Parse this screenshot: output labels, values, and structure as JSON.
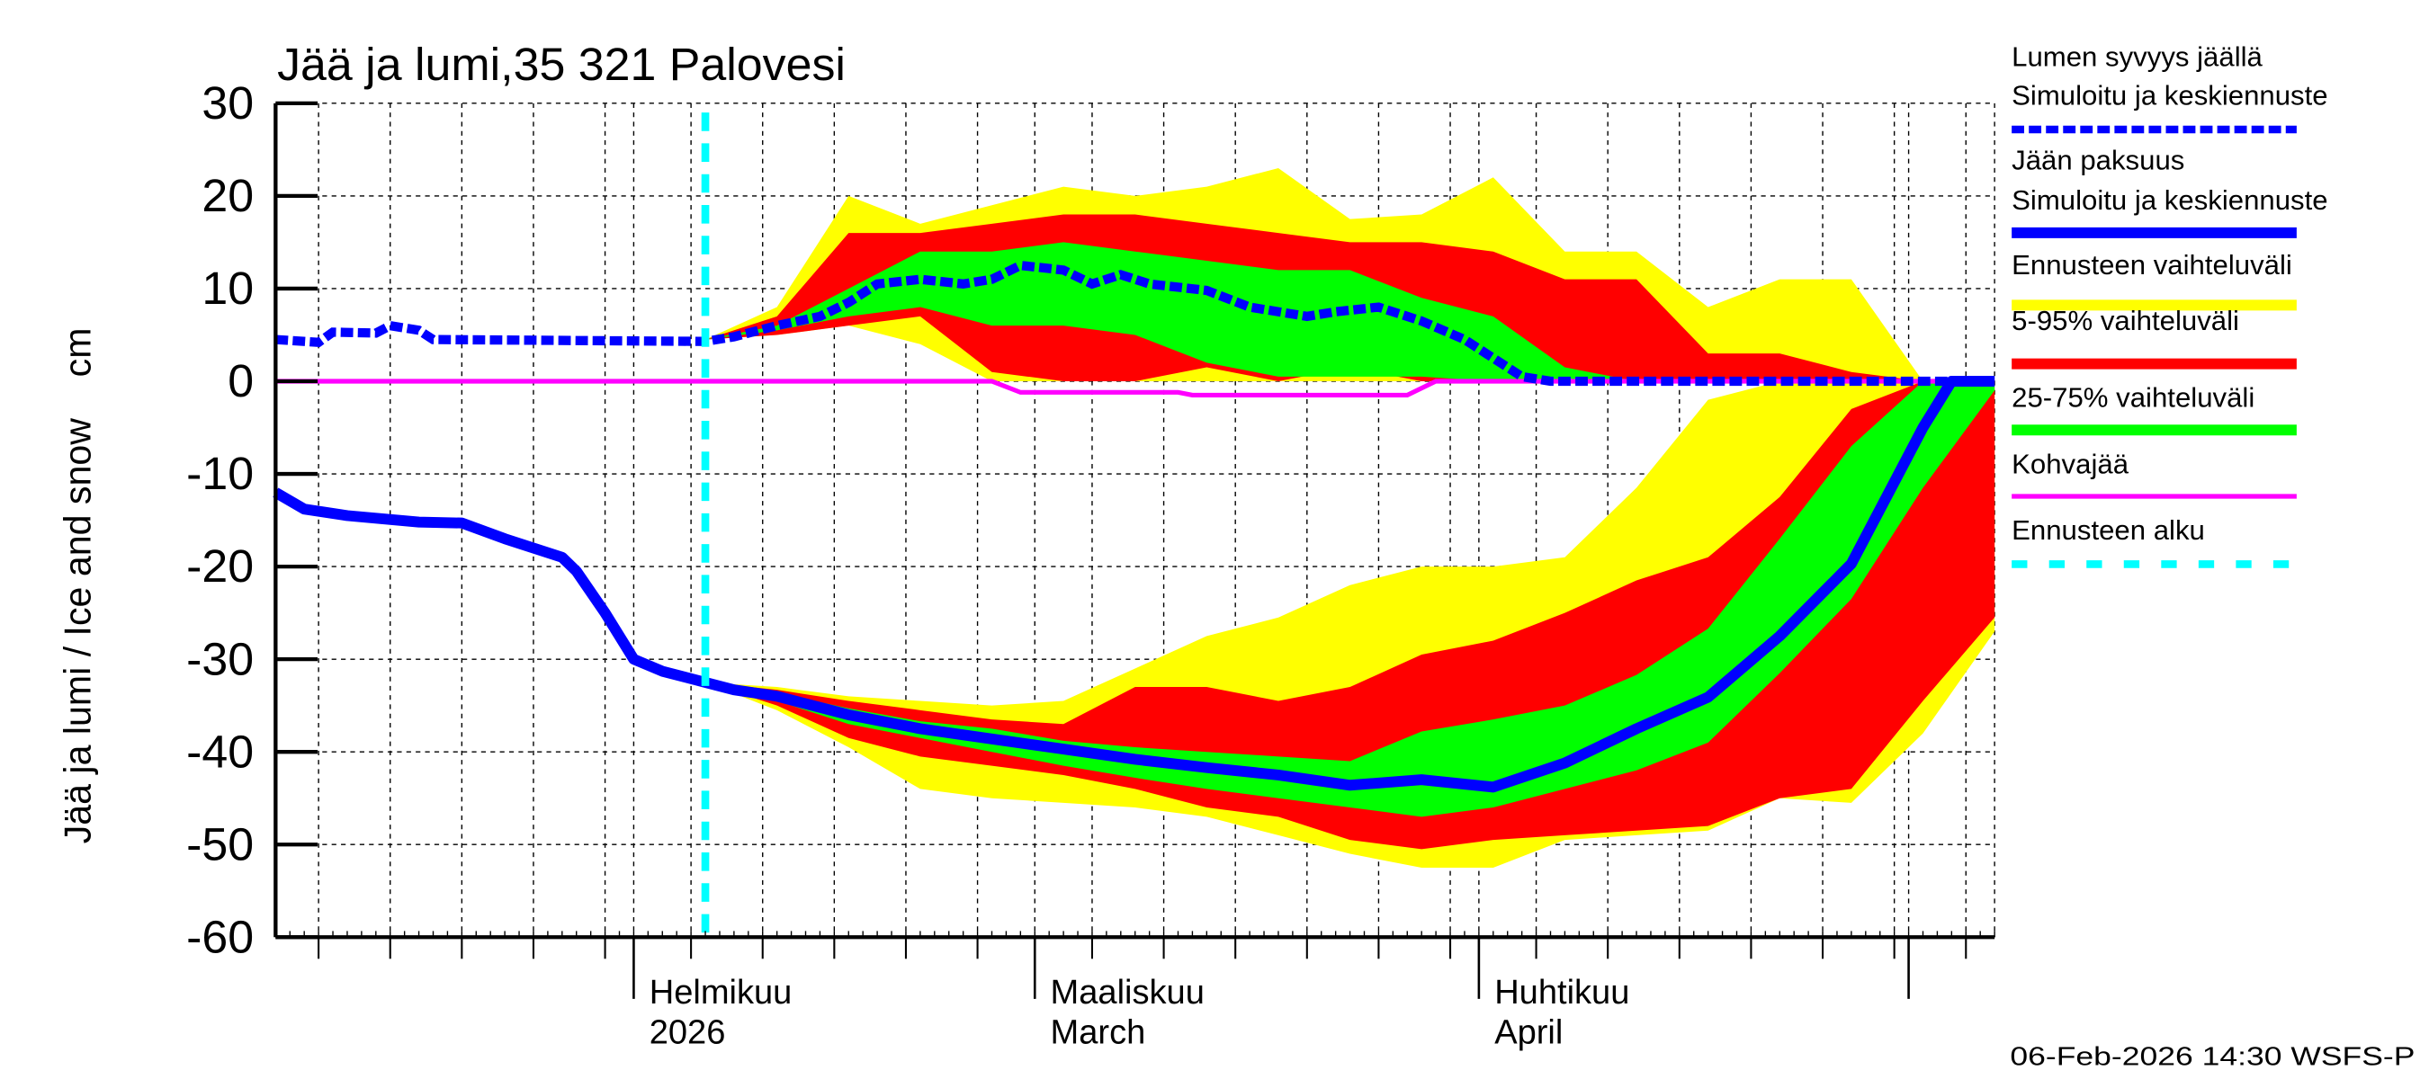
{
  "chart_data": {
    "type": "area",
    "title": "Jää ja lumi,35 321 Palovesi",
    "ylabel": "Jää ja lumi / Ice and snow    cm",
    "ylim": [
      -60,
      30
    ],
    "xlim": [
      "2026-01-07",
      "2026-05-07"
    ],
    "grid": true,
    "y_ticks": [
      30,
      20,
      10,
      0,
      -10,
      -20,
      -30,
      -40,
      -50,
      -60
    ],
    "x_labels": [
      {
        "date": "2026-02-01",
        "line1": "Helmikuu",
        "line2": "2026"
      },
      {
        "date": "2026-03-01",
        "line1": "Maaliskuu",
        "line2": "March"
      },
      {
        "date": "2026-04-01",
        "line1": "Huhtikuu",
        "line2": "April"
      }
    ],
    "forecast_start": "2026-02-06",
    "colors": {
      "snow": "#0000ff",
      "ice": "#0000ff",
      "full_range": "#ffff00",
      "p5_95": "#ff0000",
      "p25_75": "#00ff00",
      "slush": "#ff00ff",
      "forecast_start": "#00ffff"
    },
    "band_dates": [
      "2026-02-06",
      "2026-02-11",
      "2026-02-16",
      "2026-02-21",
      "2026-02-26",
      "2026-03-03",
      "2026-03-08",
      "2026-03-13",
      "2026-03-18",
      "2026-03-23",
      "2026-03-28",
      "2026-04-02",
      "2026-04-07",
      "2026-04-12",
      "2026-04-17",
      "2026-04-22",
      "2026-04-27",
      "2026-05-02",
      "2026-05-07"
    ],
    "snow_bands": {
      "full_range": {
        "upper": [
          4.5,
          8,
          20,
          17,
          19,
          21,
          20,
          21,
          23,
          17.5,
          18,
          22,
          14,
          14,
          8,
          11,
          11,
          0,
          0
        ],
        "lower": [
          4.5,
          5,
          6,
          4,
          0,
          0,
          0,
          0,
          0,
          0,
          0,
          0,
          0,
          0,
          0,
          0,
          0,
          0,
          0
        ]
      },
      "p5_95": {
        "upper": [
          4.5,
          7,
          16,
          16,
          17,
          18,
          18,
          17,
          16,
          15,
          15,
          14,
          11,
          11,
          3,
          3,
          1,
          0,
          0
        ],
        "lower": [
          4.5,
          5,
          6,
          7,
          1,
          0,
          0,
          1.5,
          0,
          1.5,
          0,
          0,
          0,
          0,
          0,
          0,
          0,
          0,
          0
        ]
      },
      "p25_75": {
        "upper": [
          4.5,
          6,
          10,
          14,
          14,
          15,
          14,
          13,
          12,
          12,
          9,
          7,
          1.5,
          0,
          0,
          0,
          0,
          0,
          0
        ],
        "lower": [
          4.5,
          5.5,
          7,
          8,
          6,
          6,
          5,
          2,
          0.5,
          0.5,
          0.5,
          0,
          0,
          0,
          0,
          0,
          0,
          0,
          0
        ]
      }
    },
    "ice_bands": {
      "full_range": {
        "upper": [
          -32.5,
          -33,
          -34,
          -34.5,
          -35,
          -34.5,
          -31,
          -27.5,
          -25.5,
          -22,
          -20,
          -20,
          -19,
          -11.5,
          -2,
          0,
          0,
          0,
          0
        ],
        "lower": [
          -32.5,
          -35.5,
          -39.5,
          -44,
          -45,
          -45.5,
          -46,
          -47,
          -49,
          -51,
          -52.5,
          -52.5,
          -49.5,
          -49,
          -48.5,
          -45,
          -45.5,
          -38,
          -27
        ]
      },
      "p5_95": {
        "upper": [
          -32.5,
          -33.3,
          -34.5,
          -35.5,
          -36.5,
          -37,
          -33,
          -33,
          -34.5,
          -33,
          -29.5,
          -28,
          -25,
          -21.5,
          -19,
          -12.5,
          -3,
          0,
          0
        ],
        "lower": [
          -32.5,
          -35,
          -38.5,
          -40.5,
          -41.5,
          -42.5,
          -44,
          -46,
          -47,
          -49.5,
          -50.5,
          -49.5,
          -49,
          -48.5,
          -48,
          -45,
          -44,
          -34.5,
          -25.5
        ]
      },
      "p25_75": {
        "upper": [
          -32.5,
          -33.6,
          -35.3,
          -36.7,
          -37.5,
          -38.8,
          -39.5,
          -40,
          -40.5,
          -41,
          -37.8,
          -36.5,
          -35,
          -31.7,
          -26.7,
          -17,
          -7,
          0,
          0
        ],
        "lower": [
          -32.5,
          -34.5,
          -37,
          -38.5,
          -40,
          -41.5,
          -42.8,
          -44,
          -45,
          -46,
          -47,
          -46,
          -44,
          -42,
          -39,
          -31.5,
          -23.5,
          -11.5,
          -1
        ]
      }
    },
    "series": [
      {
        "name": "Lumen syvyys jäällä – Simuloitu ja keskiennuste",
        "key": "snow",
        "style": "dashed",
        "x": [
          "2026-01-07",
          "2026-01-10",
          "2026-01-11",
          "2026-01-14",
          "2026-01-15",
          "2026-01-17",
          "2026-01-18",
          "2026-02-06",
          "2026-02-08",
          "2026-02-11",
          "2026-02-14",
          "2026-02-16",
          "2026-02-18",
          "2026-02-21",
          "2026-02-24",
          "2026-02-26",
          "2026-02-28",
          "2026-03-03",
          "2026-03-05",
          "2026-03-07",
          "2026-03-09",
          "2026-03-13",
          "2026-03-16",
          "2026-03-20",
          "2026-03-22",
          "2026-03-25",
          "2026-03-28",
          "2026-03-31",
          "2026-04-02",
          "2026-04-04",
          "2026-04-06",
          "2026-05-07"
        ],
        "y": [
          4.5,
          4.2,
          5.3,
          5.2,
          6,
          5.5,
          4.5,
          4.3,
          4.8,
          6,
          7,
          8.5,
          10.5,
          11,
          10.5,
          11,
          12.5,
          12,
          10.5,
          11.5,
          10.5,
          9.8,
          8,
          7,
          7.5,
          8,
          6.5,
          4.5,
          2.5,
          0.5,
          0,
          0
        ]
      },
      {
        "name": "Jään paksuus – Simuloitu ja keskiennuste",
        "key": "ice",
        "style": "solid",
        "x": [
          "2026-01-07",
          "2026-01-09",
          "2026-01-12",
          "2026-01-17",
          "2026-01-20",
          "2026-01-23",
          "2026-01-27",
          "2026-01-28",
          "2026-01-30",
          "2026-02-01",
          "2026-02-03",
          "2026-02-06",
          "2026-02-08",
          "2026-02-11",
          "2026-02-16",
          "2026-02-21",
          "2026-02-26",
          "2026-03-03",
          "2026-03-08",
          "2026-03-13",
          "2026-03-18",
          "2026-03-23",
          "2026-03-28",
          "2026-04-02",
          "2026-04-07",
          "2026-04-12",
          "2026-04-17",
          "2026-04-22",
          "2026-04-27",
          "2026-05-02",
          "2026-05-04",
          "2026-05-07"
        ],
        "y": [
          -12,
          -13.8,
          -14.5,
          -15.2,
          -15.3,
          -17,
          -19,
          -20.5,
          -25,
          -30,
          -31.3,
          -32.5,
          -33.3,
          -34,
          -36,
          -37.5,
          -38.6,
          -39.7,
          -40.8,
          -41.7,
          -42.5,
          -43.6,
          -43,
          -43.8,
          -41.2,
          -37.5,
          -34.1,
          -27.5,
          -19.7,
          -5,
          0,
          0
        ]
      },
      {
        "name": "Kohvajää",
        "key": "slush",
        "style": "solid",
        "x": [
          "2026-01-07",
          "2026-02-26",
          "2026-02-28",
          "2026-03-11",
          "2026-03-12",
          "2026-03-27",
          "2026-03-29",
          "2026-05-07"
        ],
        "y": [
          0,
          0,
          -1.2,
          -1.2,
          -1.5,
          -1.5,
          0,
          0
        ]
      }
    ],
    "legend": {
      "placement": "right",
      "entries": [
        {
          "line1": "Lumen syvyys jäällä",
          "line2": "Simuloitu ja keskiennuste",
          "color": "#0000ff",
          "style": "dashed-thick"
        },
        {
          "line1": "Jään paksuus",
          "line2": "Simuloitu ja keskiennuste",
          "color": "#0000ff",
          "style": "solid-thick"
        },
        {
          "line1": "Ennusteen vaihteluväli",
          "color": "#ffff00",
          "style": "solid-thick"
        },
        {
          "line1": "5-95% vaihteluväli",
          "color": "#ff0000",
          "style": "solid-thick"
        },
        {
          "line1": "25-75% vaihteluväli",
          "color": "#00ff00",
          "style": "solid-thick"
        },
        {
          "line1": "Kohvajää",
          "color": "#ff00ff",
          "style": "solid-thin"
        },
        {
          "line1": "Ennusteen alku",
          "color": "#00ffff",
          "style": "dashed"
        }
      ]
    },
    "footer": "06-Feb-2026 14:30 WSFS-P"
  }
}
